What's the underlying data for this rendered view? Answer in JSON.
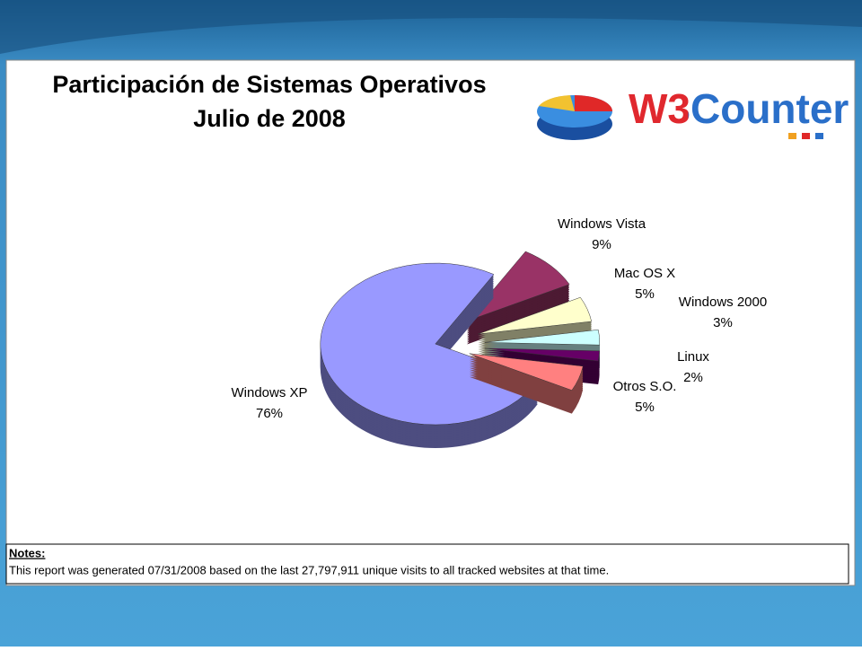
{
  "chart_data": {
    "type": "pie",
    "title": "Participación de Sistemas Operativos",
    "subtitle": "Julio de 2008",
    "logo": "W3Counter",
    "categories": [
      "Windows XP",
      "Windows Vista",
      "Mac OS X",
      "Windows 2000",
      "Linux",
      "Otros S.O."
    ],
    "values": [
      76,
      9,
      5,
      3,
      2,
      5
    ],
    "value_labels": [
      "76%",
      "9%",
      "5%",
      "3%",
      "2%",
      "5%"
    ],
    "colors": [
      "#9999ff",
      "#993366",
      "#ffffcc",
      "#ccffff",
      "#660066",
      "#ff8080"
    ],
    "notes_label": "Notes:",
    "notes": "This report was generated 07/31/2008 based on the last 27,797,911 unique visits to all tracked websites at that time."
  }
}
